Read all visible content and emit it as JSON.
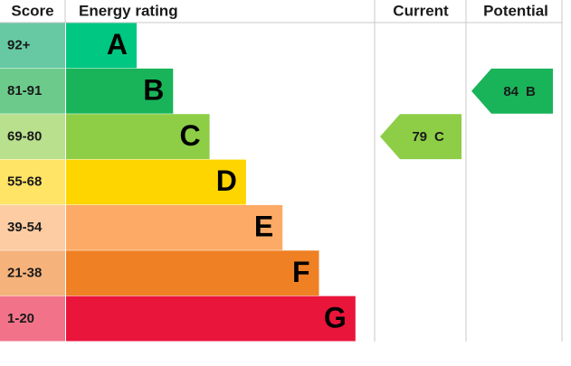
{
  "chart_data": {
    "type": "epc",
    "headers": {
      "score": "Score",
      "rating": "Energy rating",
      "current": "Current",
      "potential": "Potential"
    },
    "bands": [
      {
        "score": "92+",
        "letter": "A",
        "color": "#00c781",
        "score_color": "#66c9a4"
      },
      {
        "score": "81-91",
        "letter": "B",
        "color": "#19b459",
        "score_color": "#6ccb8b"
      },
      {
        "score": "69-80",
        "letter": "C",
        "color": "#8dce46",
        "score_color": "#b9e08d"
      },
      {
        "score": "55-68",
        "letter": "D",
        "color": "#ffd500",
        "score_color": "#ffe466"
      },
      {
        "score": "39-54",
        "letter": "E",
        "color": "#fcaa65",
        "score_color": "#fdcca3"
      },
      {
        "score": "21-38",
        "letter": "F",
        "color": "#ef8023",
        "score_color": "#f5b37b"
      },
      {
        "score": "1-20",
        "letter": "G",
        "color": "#e9153b",
        "score_color": "#f27389"
      }
    ],
    "current": {
      "value": 79,
      "rating": "C"
    },
    "potential": {
      "value": 84,
      "rating": "B"
    }
  }
}
